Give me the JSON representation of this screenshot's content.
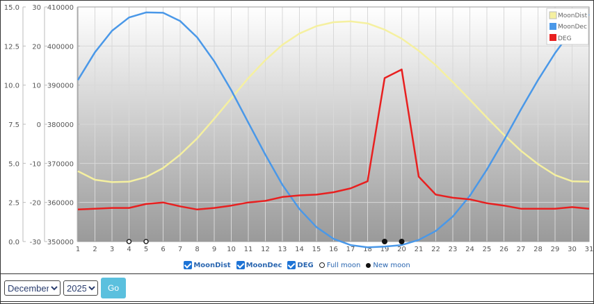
{
  "chart_data": {
    "type": "line",
    "x": [
      1,
      2,
      3,
      4,
      5,
      6,
      7,
      8,
      9,
      10,
      11,
      12,
      13,
      14,
      15,
      16,
      17,
      18,
      19,
      20,
      21,
      22,
      23,
      24,
      25,
      26,
      27,
      28,
      29,
      30,
      31
    ],
    "xlim": [
      1,
      31
    ],
    "axes": [
      {
        "id": "deg",
        "ticks": [
          "0.0",
          "2.5",
          "5.0",
          "7.5",
          "10.0",
          "12.5",
          "15.0"
        ],
        "range": [
          0,
          15
        ]
      },
      {
        "id": "dec",
        "ticks": [
          "-30",
          "-20",
          "-10",
          "0",
          "10",
          "20",
          "30"
        ],
        "range": [
          -30,
          30
        ]
      },
      {
        "id": "dist",
        "ticks": [
          "350000",
          "360000",
          "370000",
          "380000",
          "390000",
          "400000",
          "410000"
        ],
        "range": [
          350000,
          410000
        ]
      }
    ],
    "series": [
      {
        "name": "MoonDist",
        "color": "#f5f0a0",
        "axis": "dist",
        "values": [
          368000,
          365800,
          365200,
          365300,
          366500,
          368800,
          372200,
          376400,
          381400,
          386600,
          391800,
          396400,
          400300,
          403200,
          405100,
          406100,
          406300,
          405800,
          404200,
          401900,
          398800,
          395100,
          390800,
          386300,
          381700,
          377300,
          373200,
          369800,
          367000,
          365400,
          365300
        ]
      },
      {
        "name": "MoonDec",
        "color": "#4a98e8",
        "axis": "dec",
        "values": [
          11.3,
          18.4,
          23.9,
          27.3,
          28.6,
          28.5,
          26.4,
          22.2,
          16.1,
          8.7,
          0.4,
          -7.8,
          -15.5,
          -21.7,
          -26.3,
          -29.3,
          -30.9,
          -31.5,
          -31.3,
          -30.9,
          -29.6,
          -27.3,
          -23.6,
          -18.3,
          -11.6,
          -4.1,
          3.8,
          11.3,
          18.2,
          24.1,
          28.1
        ]
      },
      {
        "name": "DEG",
        "color": "#e82020",
        "axis": "deg",
        "values": [
          2.05,
          2.1,
          2.15,
          2.15,
          2.4,
          2.5,
          2.25,
          2.05,
          2.15,
          2.3,
          2.5,
          2.6,
          2.85,
          2.95,
          3.0,
          3.15,
          3.4,
          3.85,
          10.45,
          11.0,
          4.15,
          3.0,
          2.8,
          2.7,
          2.45,
          2.3,
          2.1,
          2.1,
          2.1,
          2.2,
          2.1
        ]
      }
    ],
    "full_moon_days": [
      4,
      5
    ],
    "new_moon_days": [
      19,
      20
    ],
    "legend_position": "top-right",
    "grid": true
  },
  "legend_items": {
    "moondist": "MoonDist",
    "moondec": "MoonDec",
    "deg": "DEG",
    "full_moon": "Full moon",
    "new_moon": "New moon"
  },
  "controls": {
    "month": "December",
    "year": "2025",
    "go": "Go"
  }
}
